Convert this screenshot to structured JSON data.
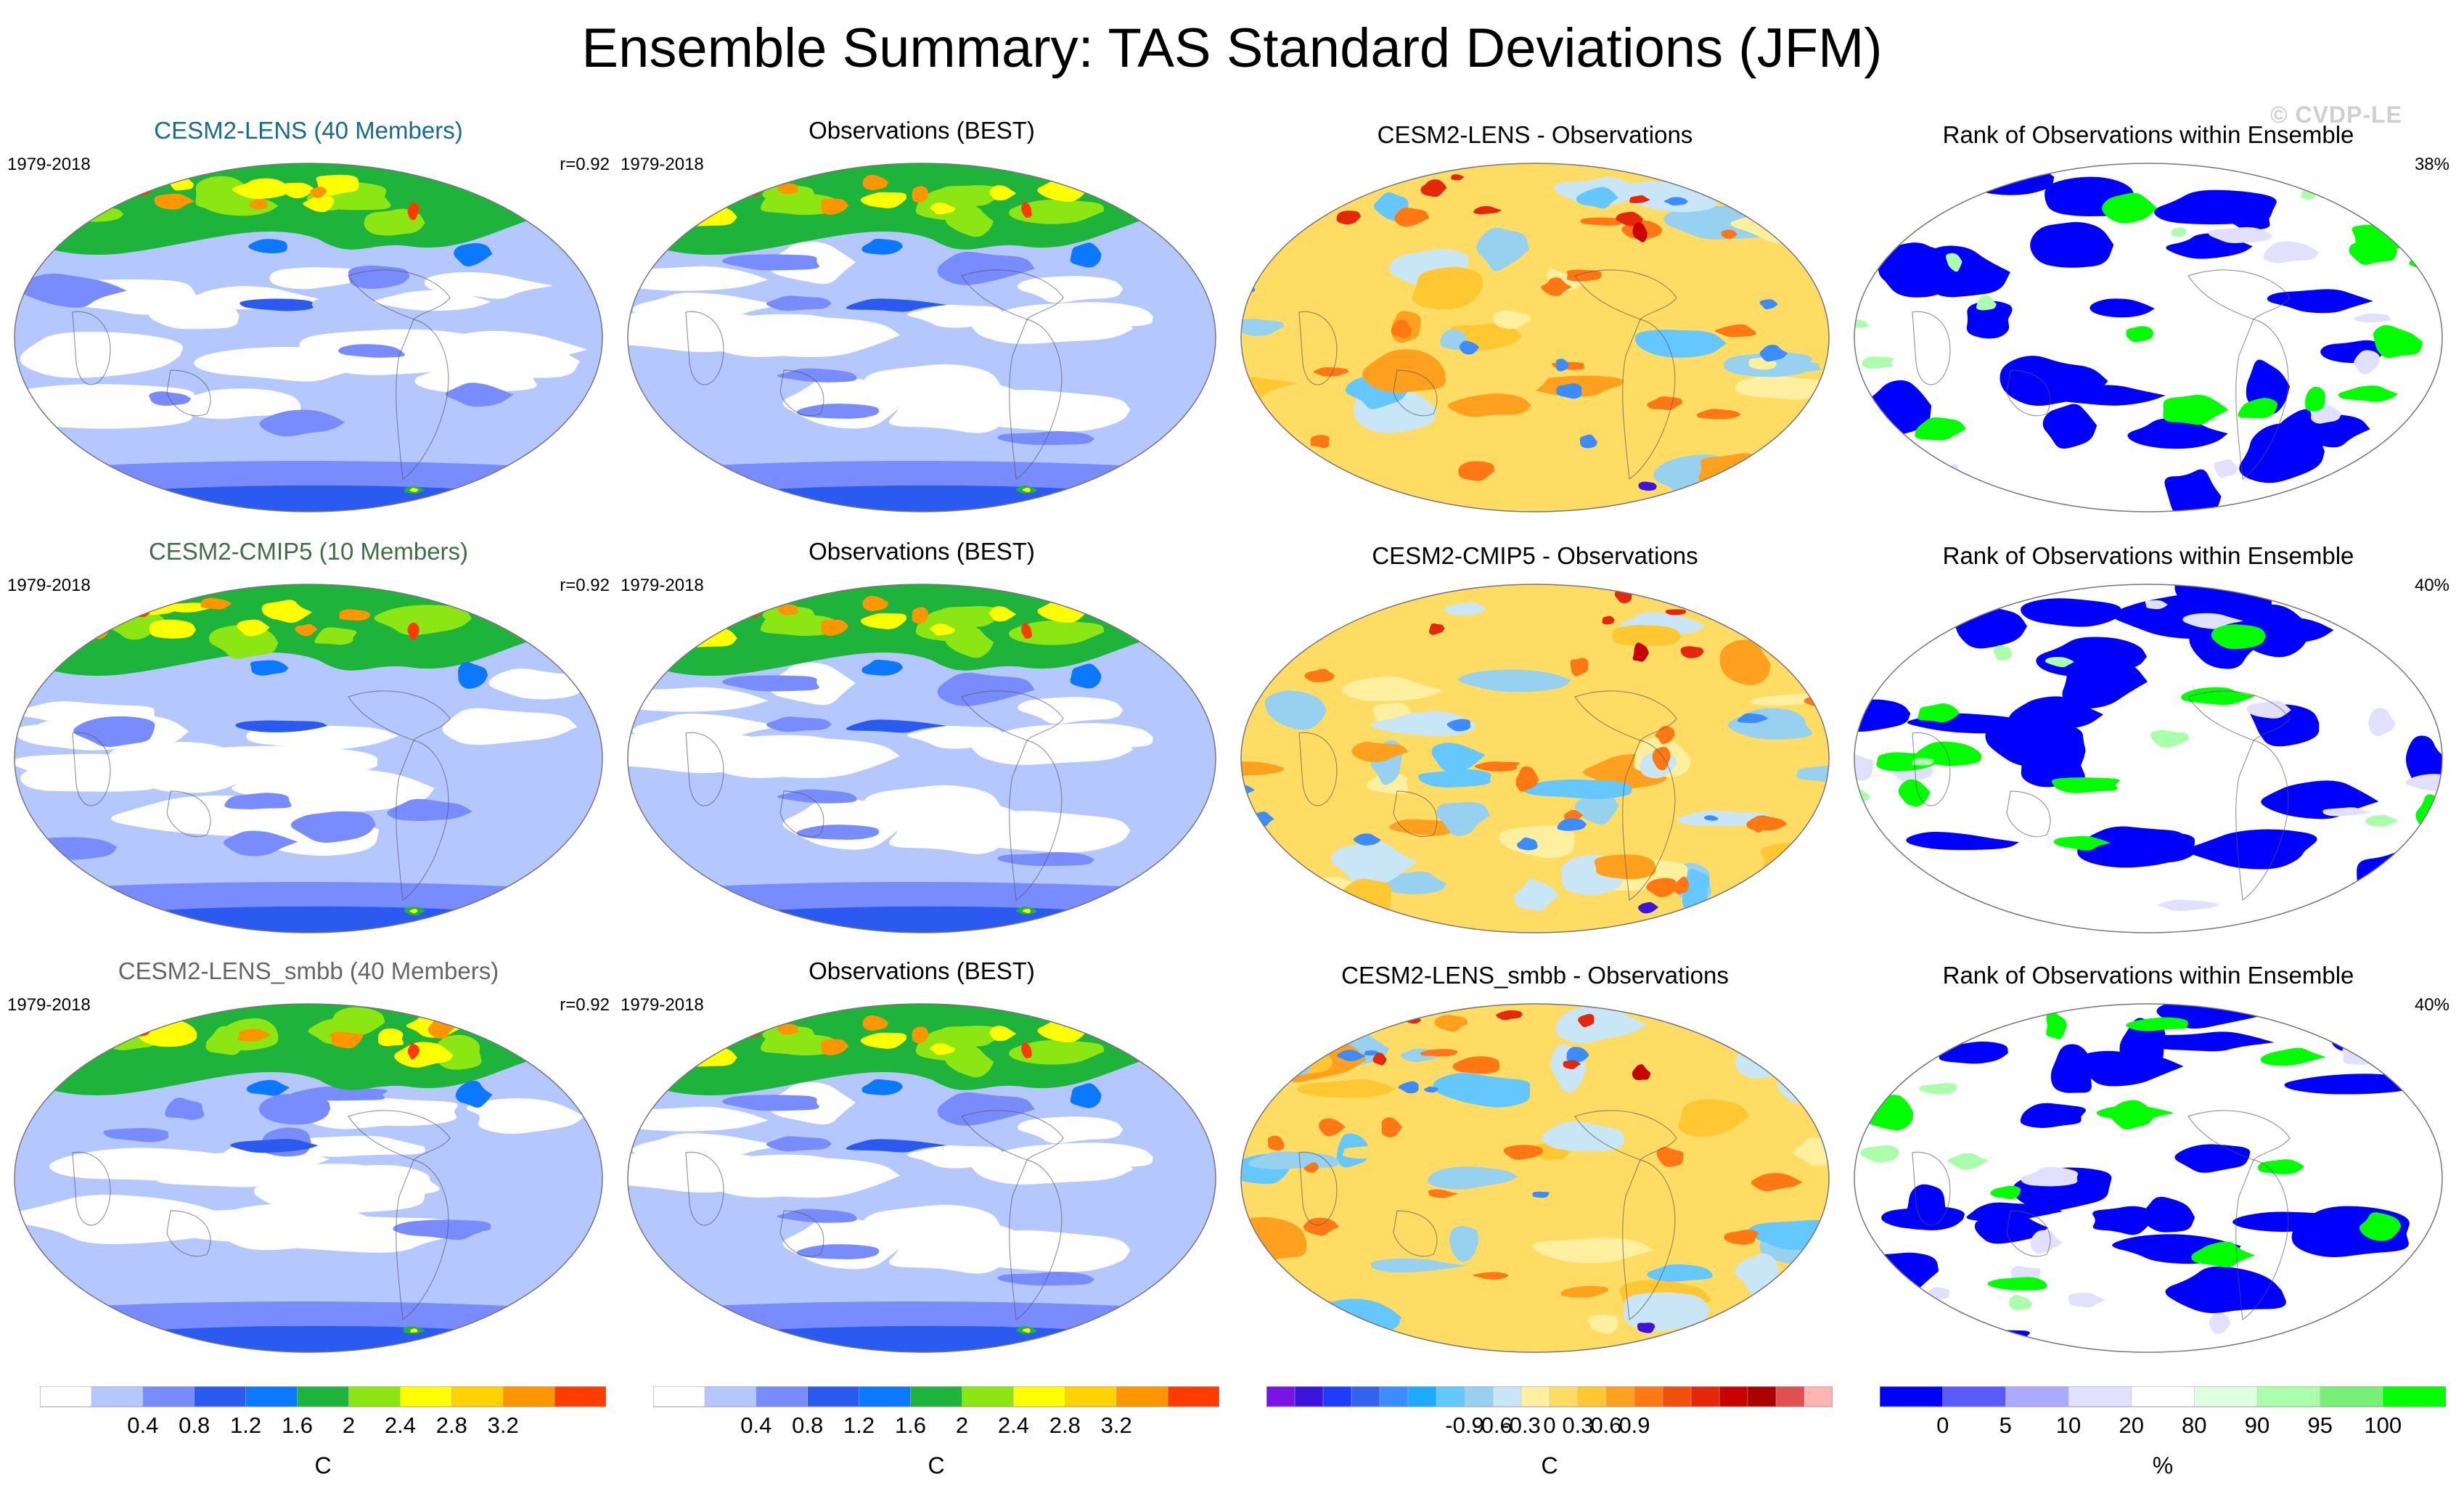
{
  "title": "Ensemble Summary: TAS Standard Deviations (JFM)",
  "watermark": "© CVDP-LE",
  "colors": {
    "model_lens": "#176b8c",
    "model_cmip5": "#3f6e46",
    "model_smbb": "#666666",
    "land_outline": "#555555"
  },
  "rows": [
    {
      "model_title": "CESM2-LENS (40 Members)",
      "model_period": "1979-2018",
      "model_corr": "r=0.92",
      "obs_title": "Observations (BEST)",
      "obs_period": "1979-2018",
      "diff_title": "CESM2-LENS - Observations",
      "rank_title": "Rank of Observations within Ensemble",
      "rank_pct": "38%"
    },
    {
      "model_title": "CESM2-CMIP5 (10 Members)",
      "model_period": "1979-2018",
      "model_corr": "r=0.92",
      "obs_title": "Observations (BEST)",
      "obs_period": "1979-2018",
      "diff_title": "CESM2-CMIP5 - Observations",
      "rank_title": "Rank of Observations within Ensemble",
      "rank_pct": "40%"
    },
    {
      "model_title": "CESM2-LENS_smbb (40 Members)",
      "model_period": "1979-2018",
      "model_corr": "r=0.92",
      "obs_title": "Observations (BEST)",
      "obs_period": "1979-2018",
      "diff_title": "CESM2-LENS_smbb - Observations",
      "rank_title": "Rank of Observations within Ensemble",
      "rank_pct": "40%"
    }
  ],
  "colorbars": {
    "stddev": {
      "unit": "C",
      "colors": [
        "#ffffff",
        "#b4c8ff",
        "#788cff",
        "#2a5af0",
        "#0a78ff",
        "#1eb43c",
        "#8ce614",
        "#ffff00",
        "#ffd200",
        "#ff9600",
        "#ff3c00"
      ],
      "labels": [
        "0.4",
        "0.8",
        "1.2",
        "1.6",
        "2",
        "2.4",
        "2.8",
        "3.2"
      ]
    },
    "diff": {
      "unit": "C",
      "colors": [
        "#7a14e6",
        "#3c14dc",
        "#1e3cff",
        "#3264f0",
        "#3c8cff",
        "#1eaaff",
        "#64c8ff",
        "#96d2f0",
        "#c8e6f5",
        "#fff0a0",
        "#ffdc64",
        "#ffc832",
        "#ffa01e",
        "#ff7814",
        "#f0500a",
        "#e6280a",
        "#c80000",
        "#aa0000",
        "#e05050",
        "#ffb4b4"
      ],
      "labels": [
        "-0.9",
        "-0.6",
        "-0.3",
        "0",
        "0.3",
        "0.6",
        "0.9"
      ]
    },
    "rank": {
      "unit": "%",
      "colors": [
        "#0000ff",
        "#5a5aff",
        "#aaaaff",
        "#e1e1ff",
        "#ffffff",
        "#e1ffe1",
        "#aaffaa",
        "#78f078",
        "#00ff00"
      ],
      "labels": [
        "0",
        "5",
        "10",
        "20",
        "80",
        "90",
        "95",
        "100"
      ]
    }
  }
}
